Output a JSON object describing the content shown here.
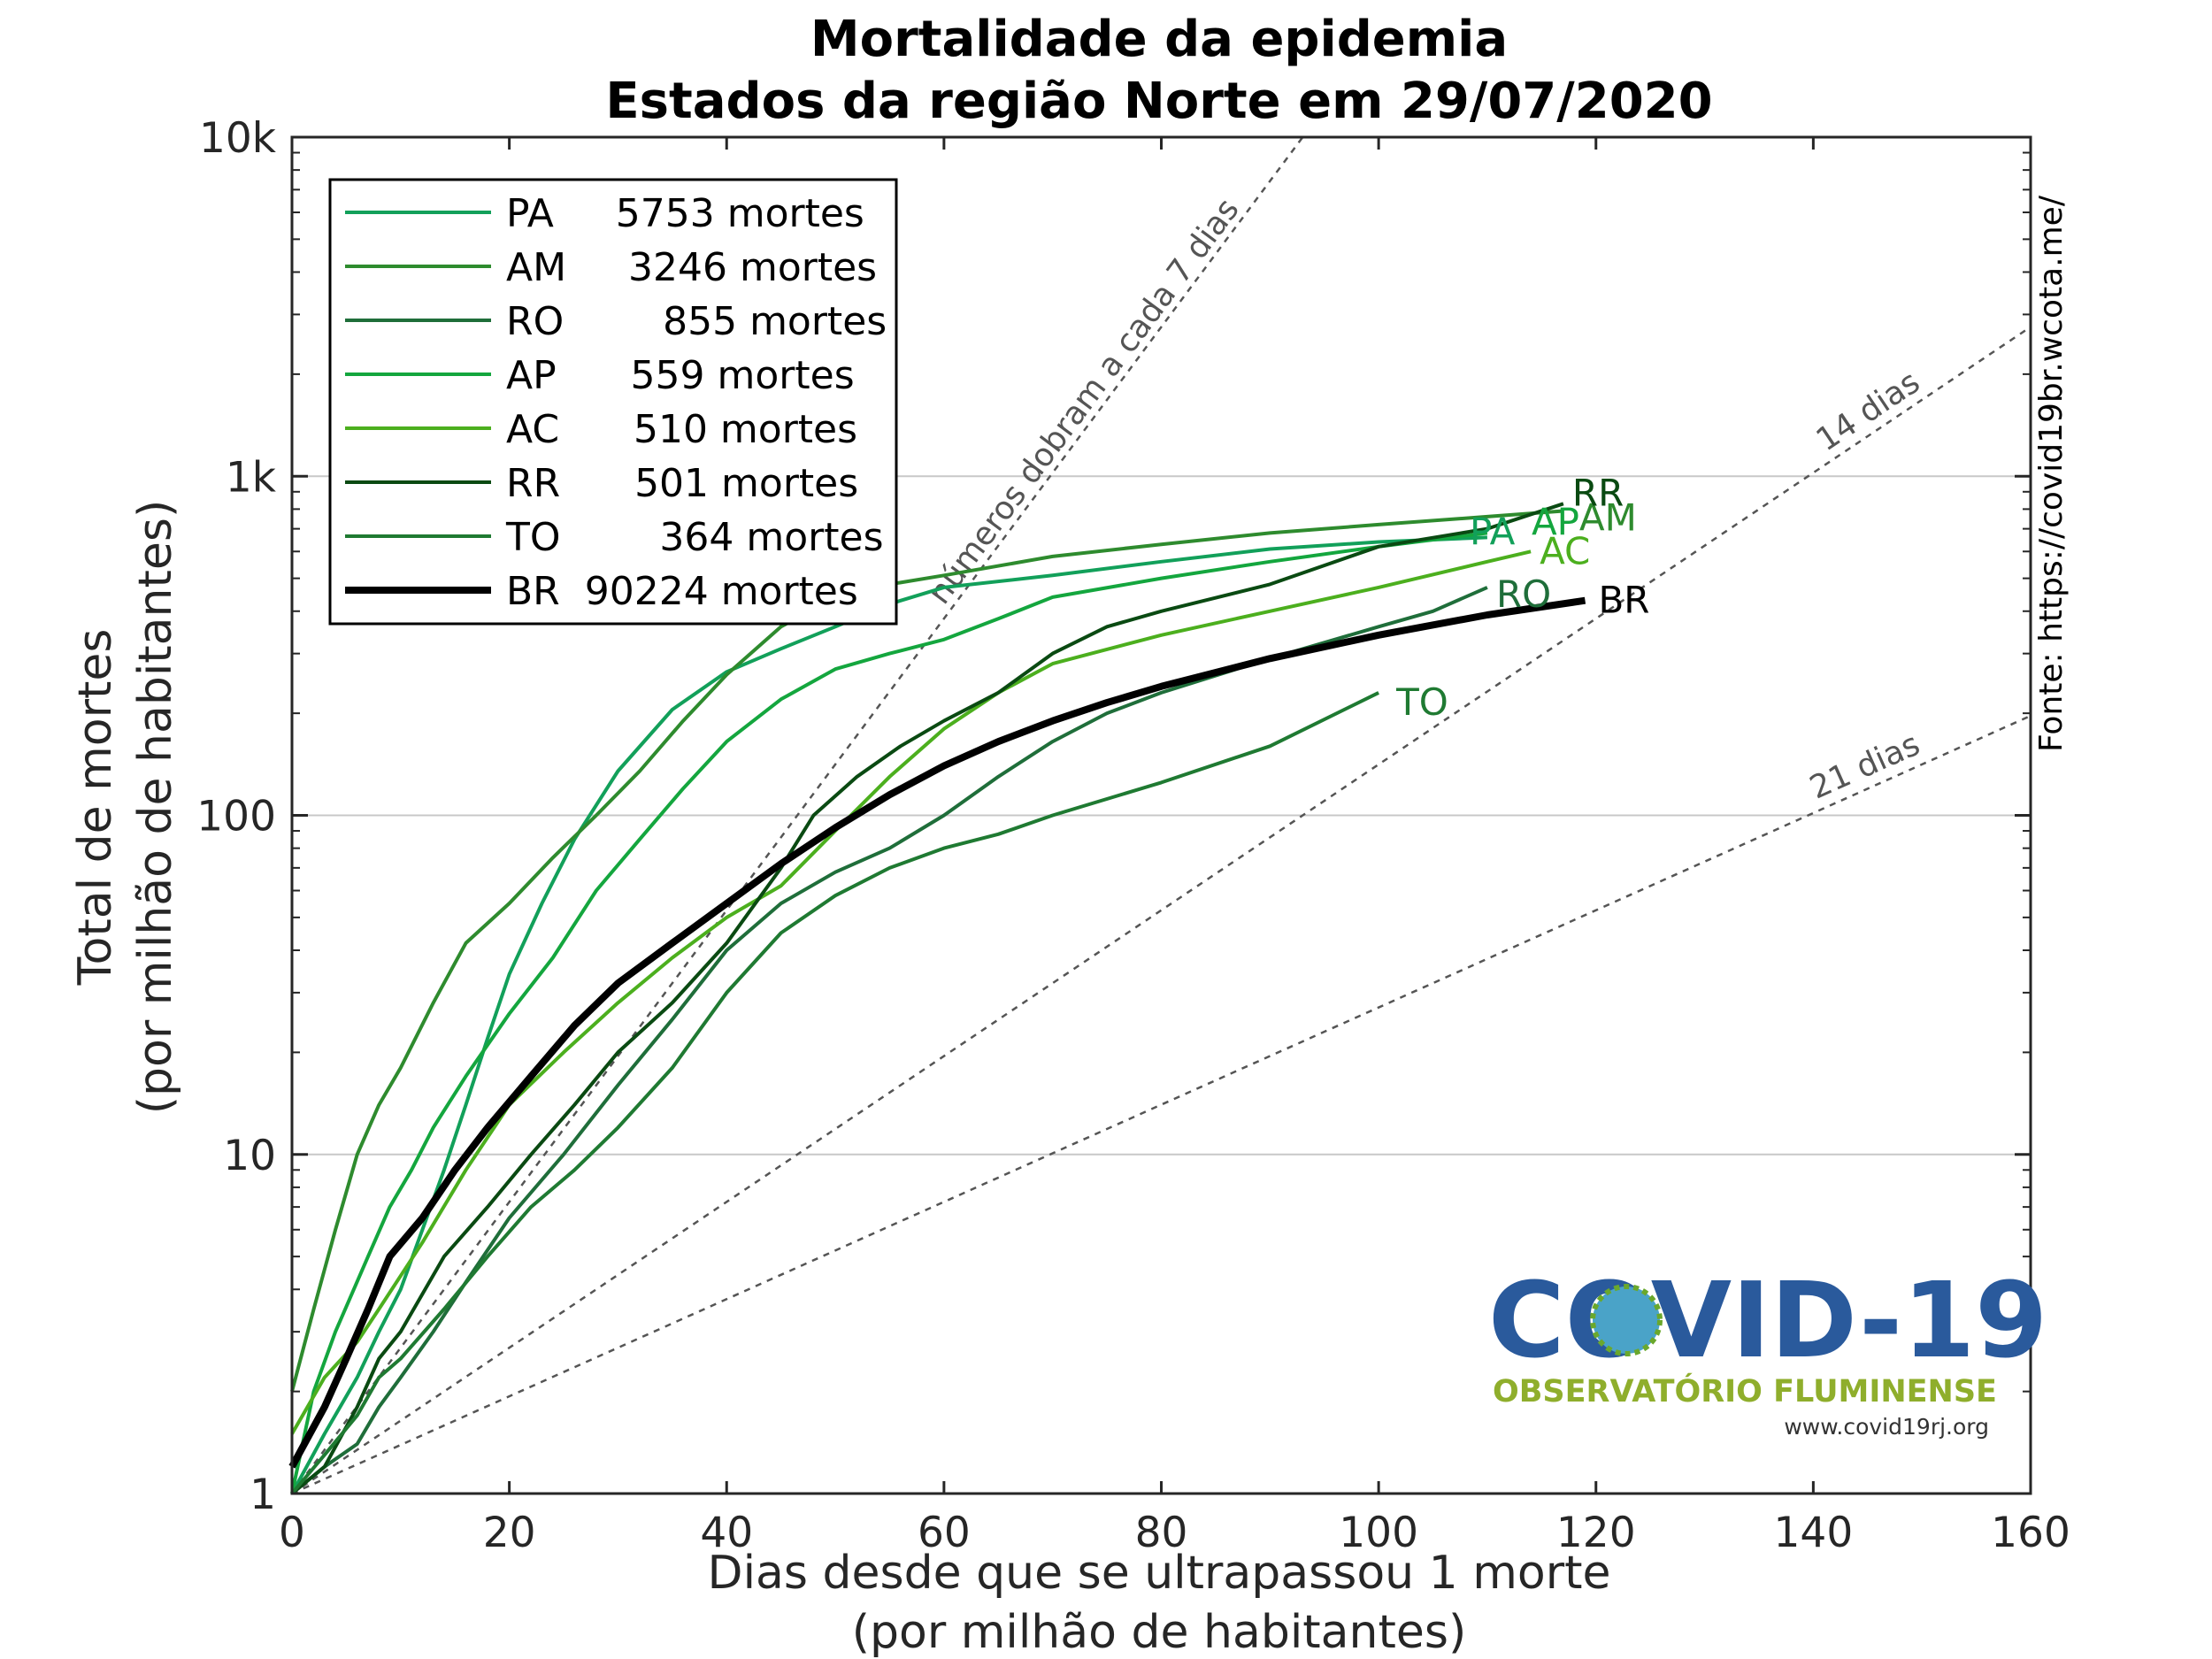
{
  "chart_data": {
    "type": "line",
    "title": [
      "Mortalidade da epidemia",
      "Estados da região Norte em 29/07/2020"
    ],
    "xlabel": [
      "Dias desde que se ultrapassou 1 morte",
      "(por milhão de habitantes)"
    ],
    "ylabel": [
      "Total de mortes",
      "(por milhão de habitantes)"
    ],
    "xlim": [
      0,
      160
    ],
    "ylim": [
      1,
      10000
    ],
    "y_scale": "log",
    "x_ticks": [
      0,
      20,
      40,
      60,
      80,
      100,
      120,
      140,
      160
    ],
    "x_tick_labels": [
      "0",
      "20",
      "40",
      "60",
      "80",
      "100",
      "120",
      "140",
      "160"
    ],
    "y_ticks": [
      1,
      10,
      100,
      1000,
      10000
    ],
    "y_tick_labels": [
      "1",
      "10",
      "100",
      "1k",
      "10k"
    ],
    "grid": "horizontal major lines",
    "legend_placement": "top-left",
    "reference_lines": [
      {
        "doubling_days": 7,
        "label": "números dobram a cada 7 dias"
      },
      {
        "doubling_days": 14,
        "label": "14 dias"
      },
      {
        "doubling_days": 21,
        "label": "21 dias"
      }
    ],
    "series": [
      {
        "name": "PA",
        "legend_label": "PA     5753 mortes",
        "color": "#12a05a",
        "width": 4,
        "points": [
          [
            0,
            1
          ],
          [
            3,
            1.5
          ],
          [
            6,
            2.2
          ],
          [
            8,
            3
          ],
          [
            10,
            4
          ],
          [
            12,
            6
          ],
          [
            14,
            9
          ],
          [
            16,
            14
          ],
          [
            18,
            22
          ],
          [
            20,
            34
          ],
          [
            23,
            55
          ],
          [
            26,
            85
          ],
          [
            30,
            135
          ],
          [
            35,
            205
          ],
          [
            40,
            265
          ],
          [
            45,
            310
          ],
          [
            50,
            360
          ],
          [
            55,
            420
          ],
          [
            60,
            470
          ],
          [
            70,
            510
          ],
          [
            80,
            560
          ],
          [
            90,
            610
          ],
          [
            100,
            640
          ],
          [
            110,
            660
          ]
        ],
        "end_label": "PA"
      },
      {
        "name": "AM",
        "legend_label": "AM     3246 mortes",
        "color": "#2e8b2e",
        "width": 4,
        "points": [
          [
            0,
            2
          ],
          [
            2,
            3.5
          ],
          [
            4,
            6
          ],
          [
            6,
            10
          ],
          [
            8,
            14
          ],
          [
            10,
            18
          ],
          [
            13,
            28
          ],
          [
            16,
            42
          ],
          [
            20,
            55
          ],
          [
            24,
            75
          ],
          [
            28,
            100
          ],
          [
            32,
            135
          ],
          [
            36,
            190
          ],
          [
            40,
            260
          ],
          [
            45,
            360
          ],
          [
            50,
            440
          ],
          [
            55,
            480
          ],
          [
            60,
            510
          ],
          [
            70,
            580
          ],
          [
            80,
            630
          ],
          [
            90,
            680
          ],
          [
            100,
            720
          ],
          [
            110,
            760
          ],
          [
            117,
            790
          ]
        ],
        "end_label": "AM"
      },
      {
        "name": "RO",
        "legend_label": "RO        855 mortes",
        "color": "#1f6e3a",
        "width": 4,
        "points": [
          [
            0,
            1
          ],
          [
            3,
            1.2
          ],
          [
            6,
            1.4
          ],
          [
            8,
            1.8
          ],
          [
            10,
            2.2
          ],
          [
            13,
            3
          ],
          [
            16,
            4.2
          ],
          [
            20,
            6.5
          ],
          [
            25,
            10
          ],
          [
            30,
            16
          ],
          [
            35,
            25
          ],
          [
            40,
            40
          ],
          [
            45,
            55
          ],
          [
            50,
            68
          ],
          [
            55,
            80
          ],
          [
            60,
            100
          ],
          [
            65,
            130
          ],
          [
            70,
            165
          ],
          [
            75,
            200
          ],
          [
            80,
            230
          ],
          [
            90,
            290
          ],
          [
            100,
            360
          ],
          [
            105,
            400
          ],
          [
            110,
            470
          ]
        ],
        "end_label": "RO"
      },
      {
        "name": "AP",
        "legend_label": "AP      559 mortes",
        "color": "#14a63e",
        "width": 4,
        "points": [
          [
            0,
            1
          ],
          [
            2,
            2
          ],
          [
            4,
            3
          ],
          [
            7,
            5
          ],
          [
            9,
            7
          ],
          [
            11,
            9
          ],
          [
            13,
            12
          ],
          [
            16,
            17
          ],
          [
            20,
            26
          ],
          [
            24,
            38
          ],
          [
            28,
            60
          ],
          [
            32,
            85
          ],
          [
            36,
            120
          ],
          [
            40,
            165
          ],
          [
            45,
            220
          ],
          [
            50,
            270
          ],
          [
            55,
            300
          ],
          [
            60,
            330
          ],
          [
            65,
            380
          ],
          [
            70,
            440
          ],
          [
            80,
            500
          ],
          [
            90,
            560
          ],
          [
            100,
            620
          ],
          [
            110,
            680
          ]
        ],
        "end_label": "AP"
      },
      {
        "name": "AC",
        "legend_label": "AC      510 mortes",
        "color": "#4caf1e",
        "width": 4,
        "points": [
          [
            0,
            1.5
          ],
          [
            3,
            2.2
          ],
          [
            6,
            2.8
          ],
          [
            8,
            3.5
          ],
          [
            12,
            5.5
          ],
          [
            16,
            9
          ],
          [
            20,
            14
          ],
          [
            25,
            20
          ],
          [
            30,
            28
          ],
          [
            35,
            38
          ],
          [
            40,
            50
          ],
          [
            45,
            62
          ],
          [
            50,
            90
          ],
          [
            55,
            130
          ],
          [
            60,
            180
          ],
          [
            65,
            230
          ],
          [
            70,
            280
          ],
          [
            80,
            340
          ],
          [
            90,
            400
          ],
          [
            100,
            470
          ],
          [
            110,
            560
          ],
          [
            114,
            600
          ]
        ],
        "end_label": "AC"
      },
      {
        "name": "RR",
        "legend_label": "RR      501 mortes",
        "color": "#0a4a12",
        "width": 4,
        "points": [
          [
            0,
            1
          ],
          [
            3,
            1.2
          ],
          [
            6,
            1.8
          ],
          [
            8,
            2.5
          ],
          [
            10,
            3
          ],
          [
            14,
            5
          ],
          [
            18,
            7
          ],
          [
            22,
            10
          ],
          [
            26,
            14
          ],
          [
            30,
            20
          ],
          [
            35,
            28
          ],
          [
            40,
            42
          ],
          [
            45,
            70
          ],
          [
            48,
            100
          ],
          [
            52,
            130
          ],
          [
            56,
            160
          ],
          [
            60,
            190
          ],
          [
            65,
            230
          ],
          [
            70,
            300
          ],
          [
            75,
            360
          ],
          [
            80,
            400
          ],
          [
            90,
            480
          ],
          [
            100,
            620
          ],
          [
            110,
            700
          ],
          [
            117,
            830
          ]
        ],
        "end_label": "RR"
      },
      {
        "name": "TO",
        "legend_label": "TO        364 mortes",
        "color": "#1f7a32",
        "width": 4,
        "points": [
          [
            0,
            1
          ],
          [
            3,
            1.3
          ],
          [
            6,
            1.7
          ],
          [
            8,
            2.2
          ],
          [
            10,
            2.5
          ],
          [
            14,
            3.5
          ],
          [
            18,
            5
          ],
          [
            22,
            7
          ],
          [
            26,
            9
          ],
          [
            30,
            12
          ],
          [
            35,
            18
          ],
          [
            40,
            30
          ],
          [
            45,
            45
          ],
          [
            50,
            58
          ],
          [
            55,
            70
          ],
          [
            60,
            80
          ],
          [
            65,
            88
          ],
          [
            70,
            100
          ],
          [
            80,
            125
          ],
          [
            90,
            160
          ],
          [
            100,
            230
          ]
        ],
        "end_label": "TO"
      },
      {
        "name": "BR",
        "legend_label": "BR  90224 mortes",
        "color": "#000000",
        "width": 8,
        "points": [
          [
            0,
            1.2
          ],
          [
            3,
            1.8
          ],
          [
            5,
            2.5
          ],
          [
            7,
            3.5
          ],
          [
            9,
            5
          ],
          [
            12,
            6.5
          ],
          [
            15,
            9
          ],
          [
            18,
            12
          ],
          [
            22,
            17
          ],
          [
            26,
            24
          ],
          [
            30,
            32
          ],
          [
            35,
            42
          ],
          [
            40,
            55
          ],
          [
            45,
            72
          ],
          [
            50,
            92
          ],
          [
            55,
            115
          ],
          [
            60,
            140
          ],
          [
            65,
            165
          ],
          [
            70,
            190
          ],
          [
            75,
            215
          ],
          [
            80,
            240
          ],
          [
            90,
            290
          ],
          [
            100,
            340
          ],
          [
            110,
            390
          ],
          [
            119,
            430
          ]
        ],
        "end_label": "BR"
      }
    ]
  },
  "source_note": "Fonte: https://covid19br.wcota.me/",
  "logo": {
    "main": "COVID-19",
    "sub": "OBSERVATÓRIO FLUMINENSE",
    "url": "www.covid19rj.org"
  }
}
